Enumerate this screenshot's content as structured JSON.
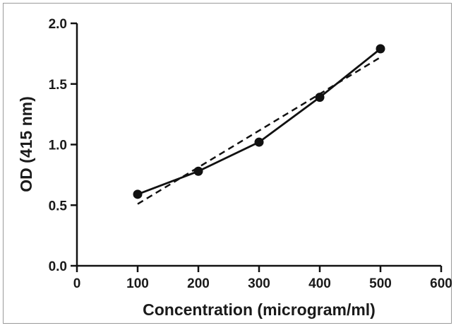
{
  "chart_data": {
    "type": "line",
    "title": "",
    "xlabel": "Concentration (microgram/ml)",
    "ylabel": "OD (415 nm)",
    "xlim": [
      0,
      600
    ],
    "ylim": [
      0.0,
      2.0
    ],
    "xticks": [
      0,
      100,
      200,
      300,
      400,
      500,
      600
    ],
    "yticks": [
      0.0,
      0.5,
      1.0,
      1.5,
      2.0
    ],
    "xtick_labels": [
      "0",
      "100",
      "200",
      "300",
      "400",
      "500",
      "600"
    ],
    "ytick_labels": [
      "0.0",
      "0.5",
      "1.0",
      "1.5",
      "2.0"
    ],
    "grid": false,
    "series": [
      {
        "style": "solid-with-markers",
        "color": "#111111",
        "x": [
          100,
          200,
          300,
          400,
          500
        ],
        "y": [
          0.59,
          0.78,
          1.02,
          1.39,
          1.79
        ]
      },
      {
        "style": "dashed-fit",
        "color": "#111111",
        "x": [
          100,
          500
        ],
        "y": [
          0.51,
          1.72
        ]
      }
    ]
  }
}
